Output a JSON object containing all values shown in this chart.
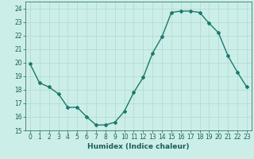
{
  "x": [
    0,
    1,
    2,
    3,
    4,
    5,
    6,
    7,
    8,
    9,
    10,
    11,
    12,
    13,
    14,
    15,
    16,
    17,
    18,
    19,
    20,
    21,
    22,
    23
  ],
  "y": [
    19.9,
    18.5,
    18.2,
    17.7,
    16.7,
    16.7,
    16.0,
    15.4,
    15.4,
    15.6,
    16.4,
    17.8,
    18.9,
    20.7,
    21.9,
    23.7,
    23.8,
    23.8,
    23.7,
    22.9,
    22.2,
    20.5,
    19.3,
    18.2
  ],
  "xlabel": "Humidex (Indice chaleur)",
  "xlim": [
    -0.5,
    23.5
  ],
  "ylim": [
    15,
    24.5
  ],
  "yticks": [
    15,
    16,
    17,
    18,
    19,
    20,
    21,
    22,
    23,
    24
  ],
  "xticks": [
    0,
    1,
    2,
    3,
    4,
    5,
    6,
    7,
    8,
    9,
    10,
    11,
    12,
    13,
    14,
    15,
    16,
    17,
    18,
    19,
    20,
    21,
    22,
    23
  ],
  "line_color": "#1a7a6e",
  "marker": "D",
  "marker_size": 2.0,
  "bg_color": "#cceee8",
  "grid_color": "#b0d8d0",
  "tick_label_color": "#1a5f58",
  "xlabel_color": "#1a5f58",
  "line_width": 1.0,
  "font_size_ticks": 5.5,
  "font_size_label": 6.5
}
